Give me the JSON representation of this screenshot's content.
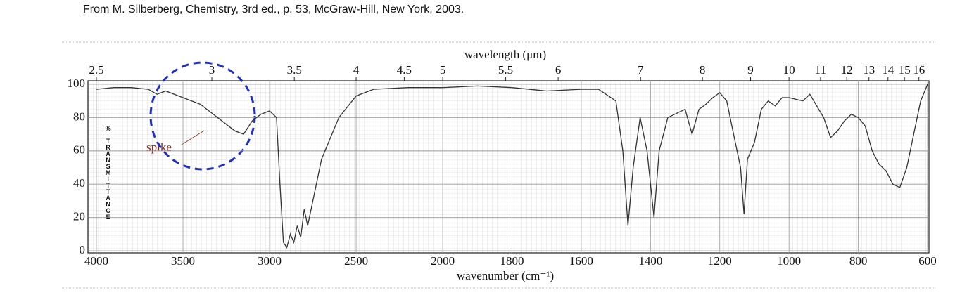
{
  "citation": "From M. Silberberg, Chemistry, 3rd ed., p. 53, McGraw-Hill, New York, 2003.",
  "chart_data": {
    "type": "line",
    "xlabel": "wavenumber (cm⁻¹)",
    "x2label": "wavelength (μm)",
    "ylabel": "% TRANSMITTANCE",
    "annotation": "spike",
    "x": [
      4000,
      3900,
      3800,
      3700,
      3650,
      3600,
      3500,
      3400,
      3300,
      3200,
      3150,
      3100,
      3050,
      3000,
      2960,
      2940,
      2920,
      2900,
      2880,
      2860,
      2840,
      2820,
      2800,
      2780,
      2750,
      2700,
      2600,
      2500,
      2400,
      2200,
      2000,
      1900,
      1800,
      1700,
      1600,
      1550,
      1500,
      1480,
      1465,
      1450,
      1430,
      1410,
      1390,
      1375,
      1350,
      1300,
      1280,
      1260,
      1240,
      1220,
      1200,
      1180,
      1160,
      1140,
      1130,
      1120,
      1100,
      1080,
      1060,
      1040,
      1020,
      1000,
      960,
      940,
      900,
      880,
      860,
      840,
      820,
      800,
      780,
      760,
      740,
      720,
      700,
      680,
      660,
      640,
      620,
      600
    ],
    "values": [
      97,
      98,
      98,
      97,
      94,
      96,
      92,
      88,
      80,
      72,
      70,
      78,
      82,
      84,
      80,
      40,
      5,
      2,
      10,
      5,
      15,
      8,
      25,
      15,
      30,
      55,
      80,
      93,
      97,
      98,
      98,
      99,
      98,
      96,
      97,
      97,
      90,
      60,
      15,
      50,
      80,
      60,
      20,
      60,
      80,
      85,
      70,
      85,
      88,
      92,
      95,
      90,
      70,
      50,
      22,
      55,
      65,
      85,
      90,
      87,
      92,
      92,
      90,
      94,
      80,
      68,
      72,
      78,
      82,
      80,
      75,
      60,
      52,
      48,
      40,
      38,
      50,
      70,
      90,
      100
    ],
    "color": "#333333",
    "xlim": [
      4000,
      600
    ],
    "xticks": [
      4000,
      3500,
      3000,
      2500,
      2000,
      1800,
      1600,
      1400,
      1200,
      1000,
      800,
      600
    ],
    "x2ticks": [
      2.5,
      3,
      3.5,
      4,
      4.5,
      5,
      5.5,
      6,
      7,
      8,
      9,
      10,
      11,
      12,
      13,
      14,
      15,
      16
    ],
    "ylim": [
      0,
      100
    ],
    "yticks": [
      0,
      20,
      40,
      60,
      80,
      100
    ],
    "grid": true
  }
}
